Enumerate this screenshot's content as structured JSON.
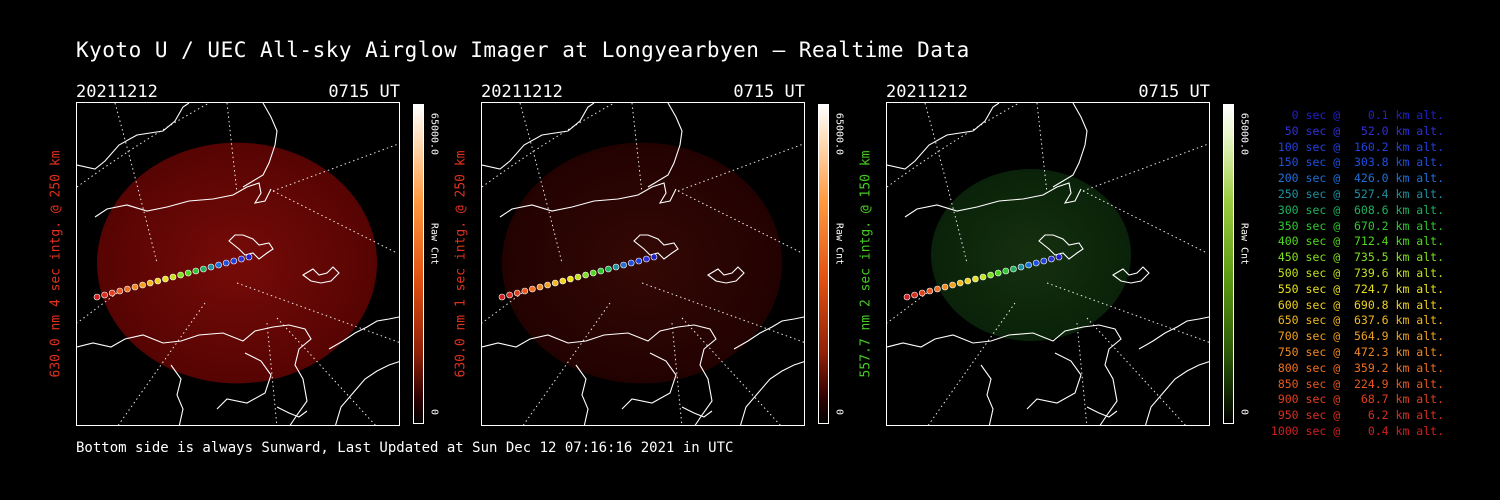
{
  "title": "Kyoto U / UEC All-sky Airglow Imager at Longyearbyen — Realtime Data",
  "footer": "Bottom side is always Sunward, Last Updated at Sun Dec 12 07:16:16 2021 in UTC",
  "panels": [
    {
      "date": "20211212",
      "time": "0715 UT",
      "ylabel": "630.0 nm 4 sec intg. @ 250 km",
      "label_color": "#e0301e",
      "colorbar_max": "65000.0",
      "colorbar_min": "0",
      "colorbar_label": "Raw Cnt",
      "colormap": "red",
      "intensity": 0.9
    },
    {
      "date": "20211212",
      "time": "0715 UT",
      "ylabel": "630.0 nm 1 sec intg. @ 250 km",
      "label_color": "#e0301e",
      "colorbar_max": "65000.0",
      "colorbar_min": "0",
      "colorbar_label": "Raw Cnt",
      "colormap": "red",
      "intensity": 0.35
    },
    {
      "date": "20211212",
      "time": "0715 UT",
      "ylabel": "557.7 nm 2 sec intg. @ 150 km",
      "label_color": "#44cc22",
      "colorbar_max": "65000.0",
      "colorbar_min": "0",
      "colorbar_label": "Raw Cnt",
      "colormap": "green",
      "intensity": 0.6
    }
  ],
  "legend": [
    {
      "text": "   0 sec @    0.1 km alt.",
      "color": "#2020c8"
    },
    {
      "text": "  50 sec @   52.0 km alt.",
      "color": "#3030d8"
    },
    {
      "text": " 100 sec @  160.2 km alt.",
      "color": "#2040e0"
    },
    {
      "text": " 150 sec @  303.8 km alt.",
      "color": "#2050e0"
    },
    {
      "text": " 200 sec @  426.0 km alt.",
      "color": "#2070d8"
    },
    {
      "text": " 250 sec @  527.4 km alt.",
      "color": "#2090a0"
    },
    {
      "text": " 300 sec @  608.6 km alt.",
      "color": "#20b060"
    },
    {
      "text": " 350 sec @  670.2 km alt.",
      "color": "#30c830"
    },
    {
      "text": " 400 sec @  712.4 km alt.",
      "color": "#50d820"
    },
    {
      "text": " 450 sec @  735.5 km alt.",
      "color": "#80e020"
    },
    {
      "text": " 500 sec @  739.6 km alt.",
      "color": "#c0e020"
    },
    {
      "text": " 550 sec @  724.7 km alt.",
      "color": "#e8e020"
    },
    {
      "text": " 600 sec @  690.8 km alt.",
      "color": "#f0d020"
    },
    {
      "text": " 650 sec @  637.6 km alt.",
      "color": "#f0b820"
    },
    {
      "text": " 700 sec @  564.9 km alt.",
      "color": "#f0a020"
    },
    {
      "text": " 750 sec @  472.3 km alt.",
      "color": "#f08820"
    },
    {
      "text": " 800 sec @  359.2 km alt.",
      "color": "#f07020"
    },
    {
      "text": " 850 sec @  224.9 km alt.",
      "color": "#e85820"
    },
    {
      "text": " 900 sec @   68.7 km alt.",
      "color": "#e04020"
    },
    {
      "text": " 950 sec @    6.2 km alt.",
      "color": "#d83020"
    },
    {
      "text": "1000 sec @    0.4 km alt.",
      "color": "#d02020"
    }
  ]
}
